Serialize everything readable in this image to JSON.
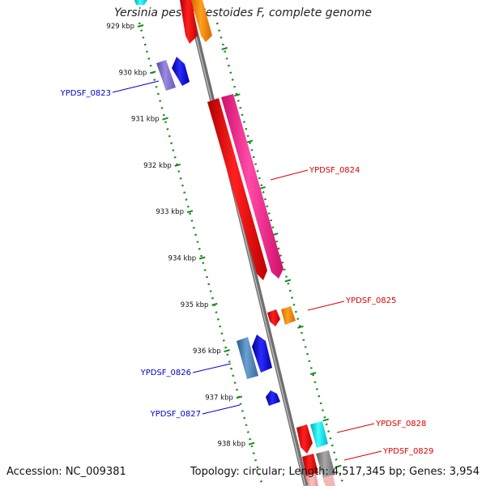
{
  "title": "Yersinia pestis Pestoides F, complete genome",
  "accession": "Accession: NC_009381",
  "stats": "Topology: circular; Length: 4,517,345 bp; Genes: 3,954",
  "ticks": [
    "929 kbp",
    "930 kbp",
    "931 kbp",
    "932 kbp",
    "933 kbp",
    "934 kbp",
    "935 kbp",
    "936 kbp",
    "937 kbp",
    "938 kbp"
  ],
  "genes": [
    {
      "label": "YPDSF_0823",
      "strand": "minus",
      "color": "#0000cc"
    },
    {
      "label": "YPDSF_0824",
      "strand": "plus",
      "color": "#dd0000"
    },
    {
      "label": "YPDSF_0825",
      "strand": "plus",
      "color": "#dd0000"
    },
    {
      "label": "YPDSF_0826",
      "strand": "minus",
      "color": "#0000cc"
    },
    {
      "label": "YPDSF_0827",
      "strand": "minus",
      "color": "#0000cc"
    },
    {
      "label": "YPDSF_0828",
      "strand": "plus",
      "color": "#dd0000"
    },
    {
      "label": "YPDSF_0829",
      "strand": "plus",
      "color": "#dd0000"
    }
  ],
  "colors": {
    "backbone": "#8a8a8a",
    "track_dots": "#1a8a1a",
    "minus_label": "#0000cc",
    "plus_label": "#dd0000"
  }
}
